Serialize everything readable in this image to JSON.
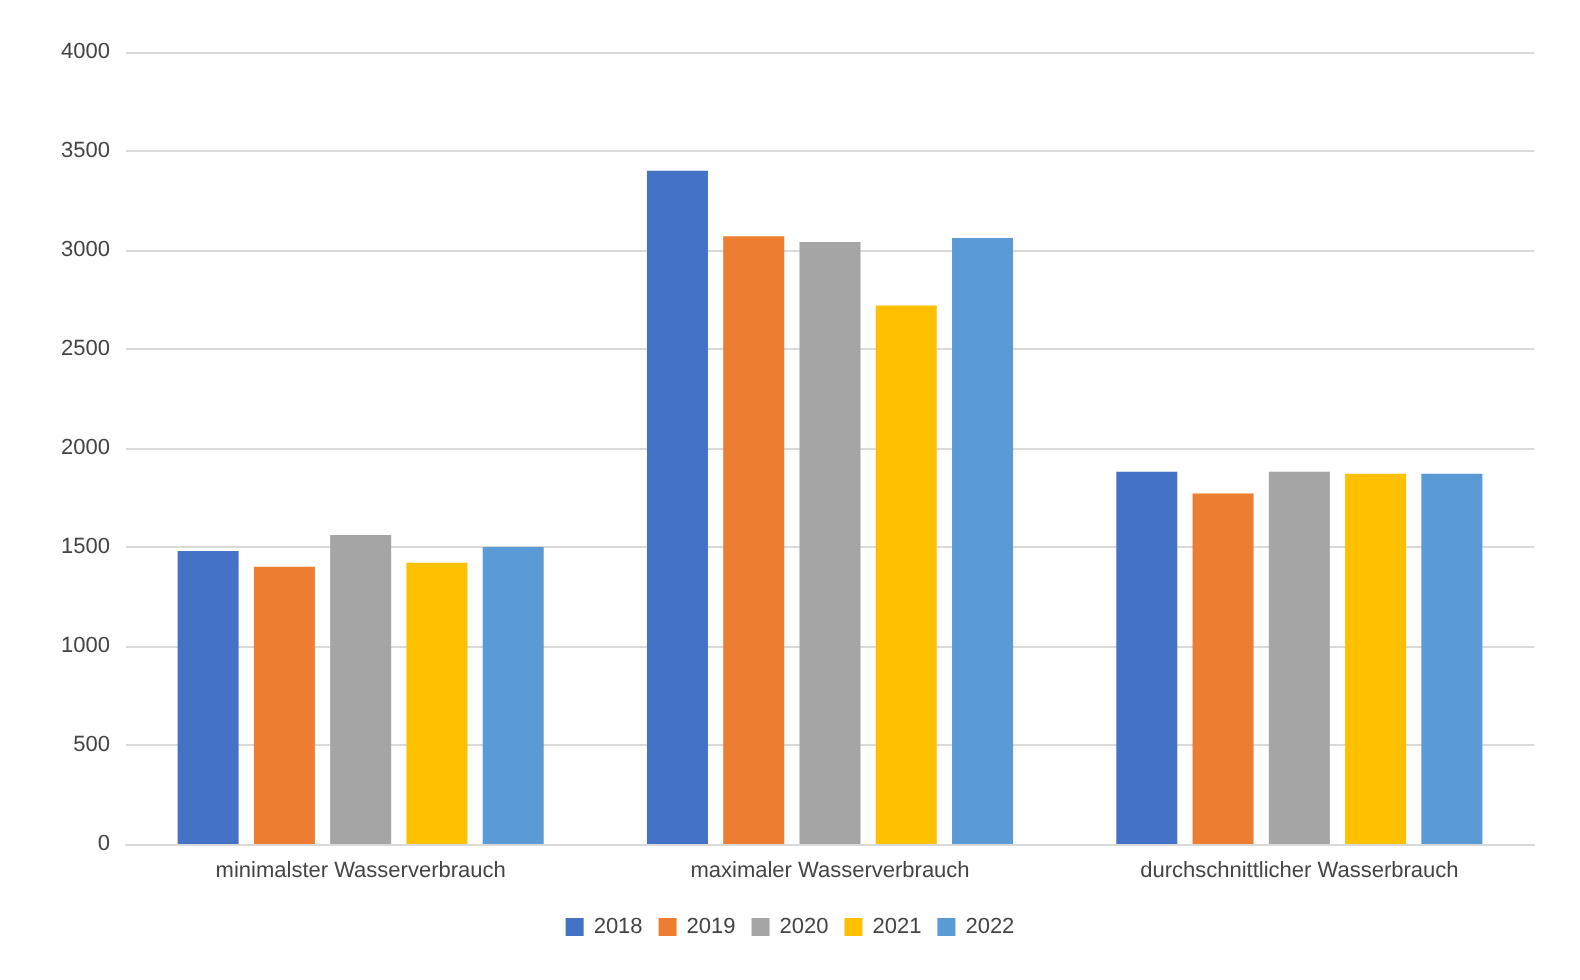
{
  "chart_data": {
    "type": "bar",
    "categories": [
      "minimalster Wasserverbrauch",
      "maximaler Wasserverbrauch",
      "durchschnittlicher Wasserbrauch"
    ],
    "series": [
      {
        "name": "2018",
        "color": "#4472c4",
        "values": [
          1480,
          3400,
          1880
        ]
      },
      {
        "name": "2019",
        "color": "#ed7d31",
        "values": [
          1400,
          3070,
          1770
        ]
      },
      {
        "name": "2020",
        "color": "#a5a5a5",
        "values": [
          1560,
          3040,
          1880
        ]
      },
      {
        "name": "2021",
        "color": "#ffc000",
        "values": [
          1420,
          2720,
          1870
        ]
      },
      {
        "name": "2022",
        "color": "#5b9bd5",
        "values": [
          1500,
          3060,
          1870
        ]
      }
    ],
    "ylim": [
      0,
      4000
    ],
    "yticks": [
      0,
      500,
      1000,
      1500,
      2000,
      2500,
      3000,
      3500,
      4000
    ],
    "grid": "y",
    "legend": "bottom"
  }
}
